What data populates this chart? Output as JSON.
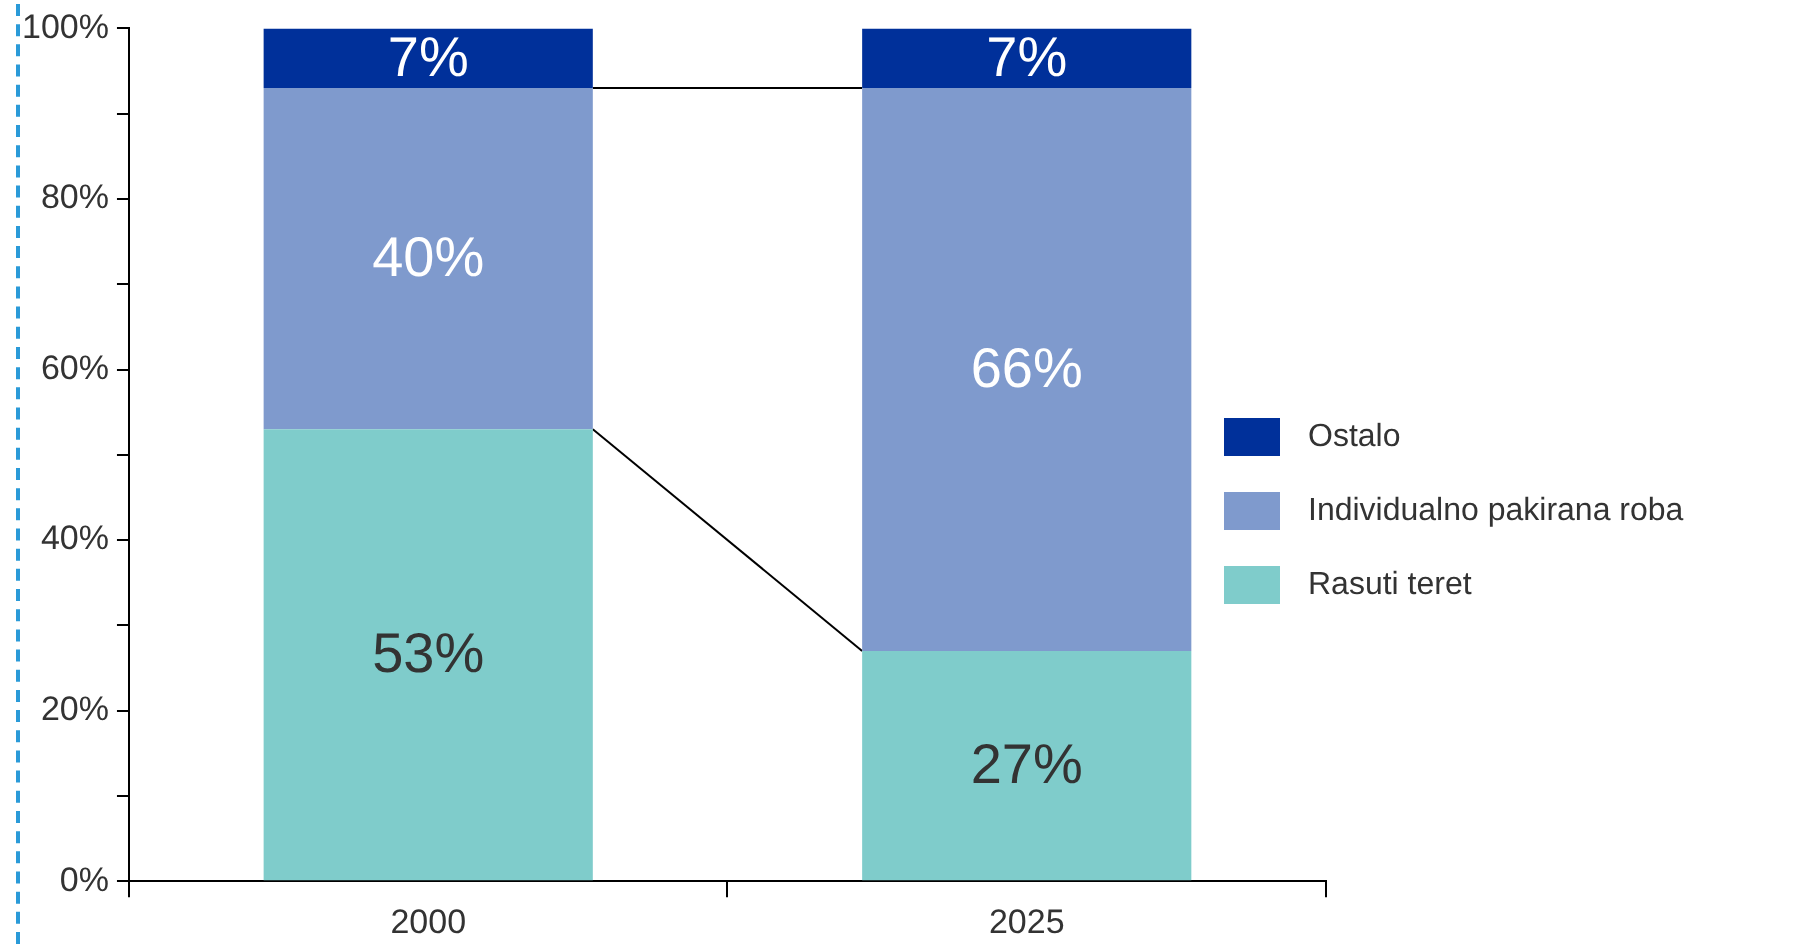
{
  "chart_data": {
    "type": "bar",
    "stacked": true,
    "categories": [
      "2000",
      "2025"
    ],
    "series": [
      {
        "name": "Rasuti teret",
        "color": "#7fcccb",
        "values": [
          53,
          27
        ],
        "value_labels": [
          "53%",
          "27%"
        ]
      },
      {
        "name": "Individualno pakirana roba",
        "color": "#7f9acd",
        "values": [
          40,
          66
        ],
        "value_labels": [
          "40%",
          "66%"
        ]
      },
      {
        "name": "Ostalo",
        "color": "#00309a",
        "values": [
          7,
          7
        ],
        "value_labels": [
          "7%",
          "7%"
        ]
      }
    ],
    "ylim": [
      0,
      100
    ],
    "yticks": [
      {
        "value": 0,
        "label": "0%"
      },
      {
        "value": 10,
        "label": null
      },
      {
        "value": 20,
        "label": "20%"
      },
      {
        "value": 30,
        "label": null
      },
      {
        "value": 40,
        "label": "40%"
      },
      {
        "value": 50,
        "label": null
      },
      {
        "value": 60,
        "label": "60%"
      },
      {
        "value": 70,
        "label": null
      },
      {
        "value": 80,
        "label": "80%"
      },
      {
        "value": 90,
        "label": null
      },
      {
        "value": 100,
        "label": "100%"
      }
    ],
    "grid": false,
    "legend": "right"
  }
}
